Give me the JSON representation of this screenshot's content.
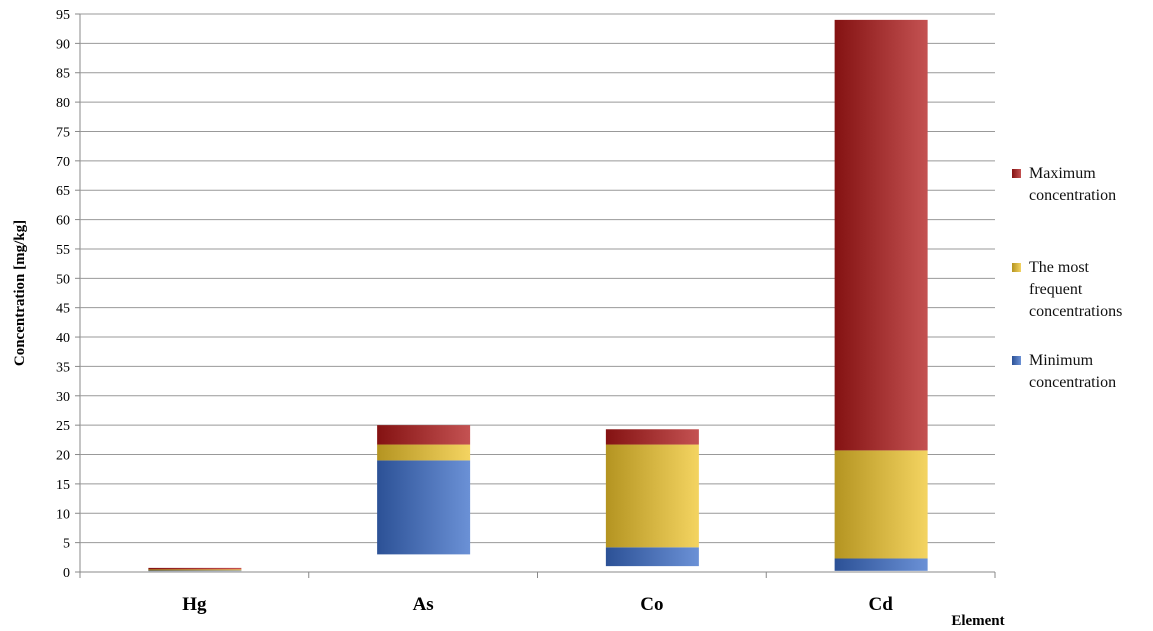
{
  "chart_data": {
    "type": "range-bar",
    "y_label": "Concentration [mg/kg]",
    "x_label": "Element",
    "categories": [
      "Hg",
      "As",
      "Co",
      "Cd"
    ],
    "series": [
      {
        "name": "Minimum concentration",
        "color": "#3a6cc8",
        "values": [
          [
            0.3,
            0.4
          ],
          [
            3,
            19
          ],
          [
            1,
            4.2
          ],
          [
            0.2,
            2.3
          ]
        ]
      },
      {
        "name": "The most frequent concentrations",
        "color": "#f0c52c",
        "values": [
          [
            0.4,
            0.5
          ],
          [
            19,
            21.7
          ],
          [
            4.2,
            21.7
          ],
          [
            2.3,
            20.7
          ]
        ]
      },
      {
        "name": "Maximum concentration",
        "color": "#b01818",
        "values": [
          [
            0.5,
            0.7
          ],
          [
            21.7,
            25
          ],
          [
            21.7,
            24.3
          ],
          [
            20.7,
            94
          ]
        ]
      }
    ],
    "ylim": [
      0,
      95
    ],
    "yticks": [
      0,
      5,
      10,
      15,
      20,
      25,
      30,
      35,
      40,
      45,
      50,
      55,
      60,
      65,
      70,
      75,
      80,
      85,
      90,
      95
    ],
    "grid": true
  }
}
